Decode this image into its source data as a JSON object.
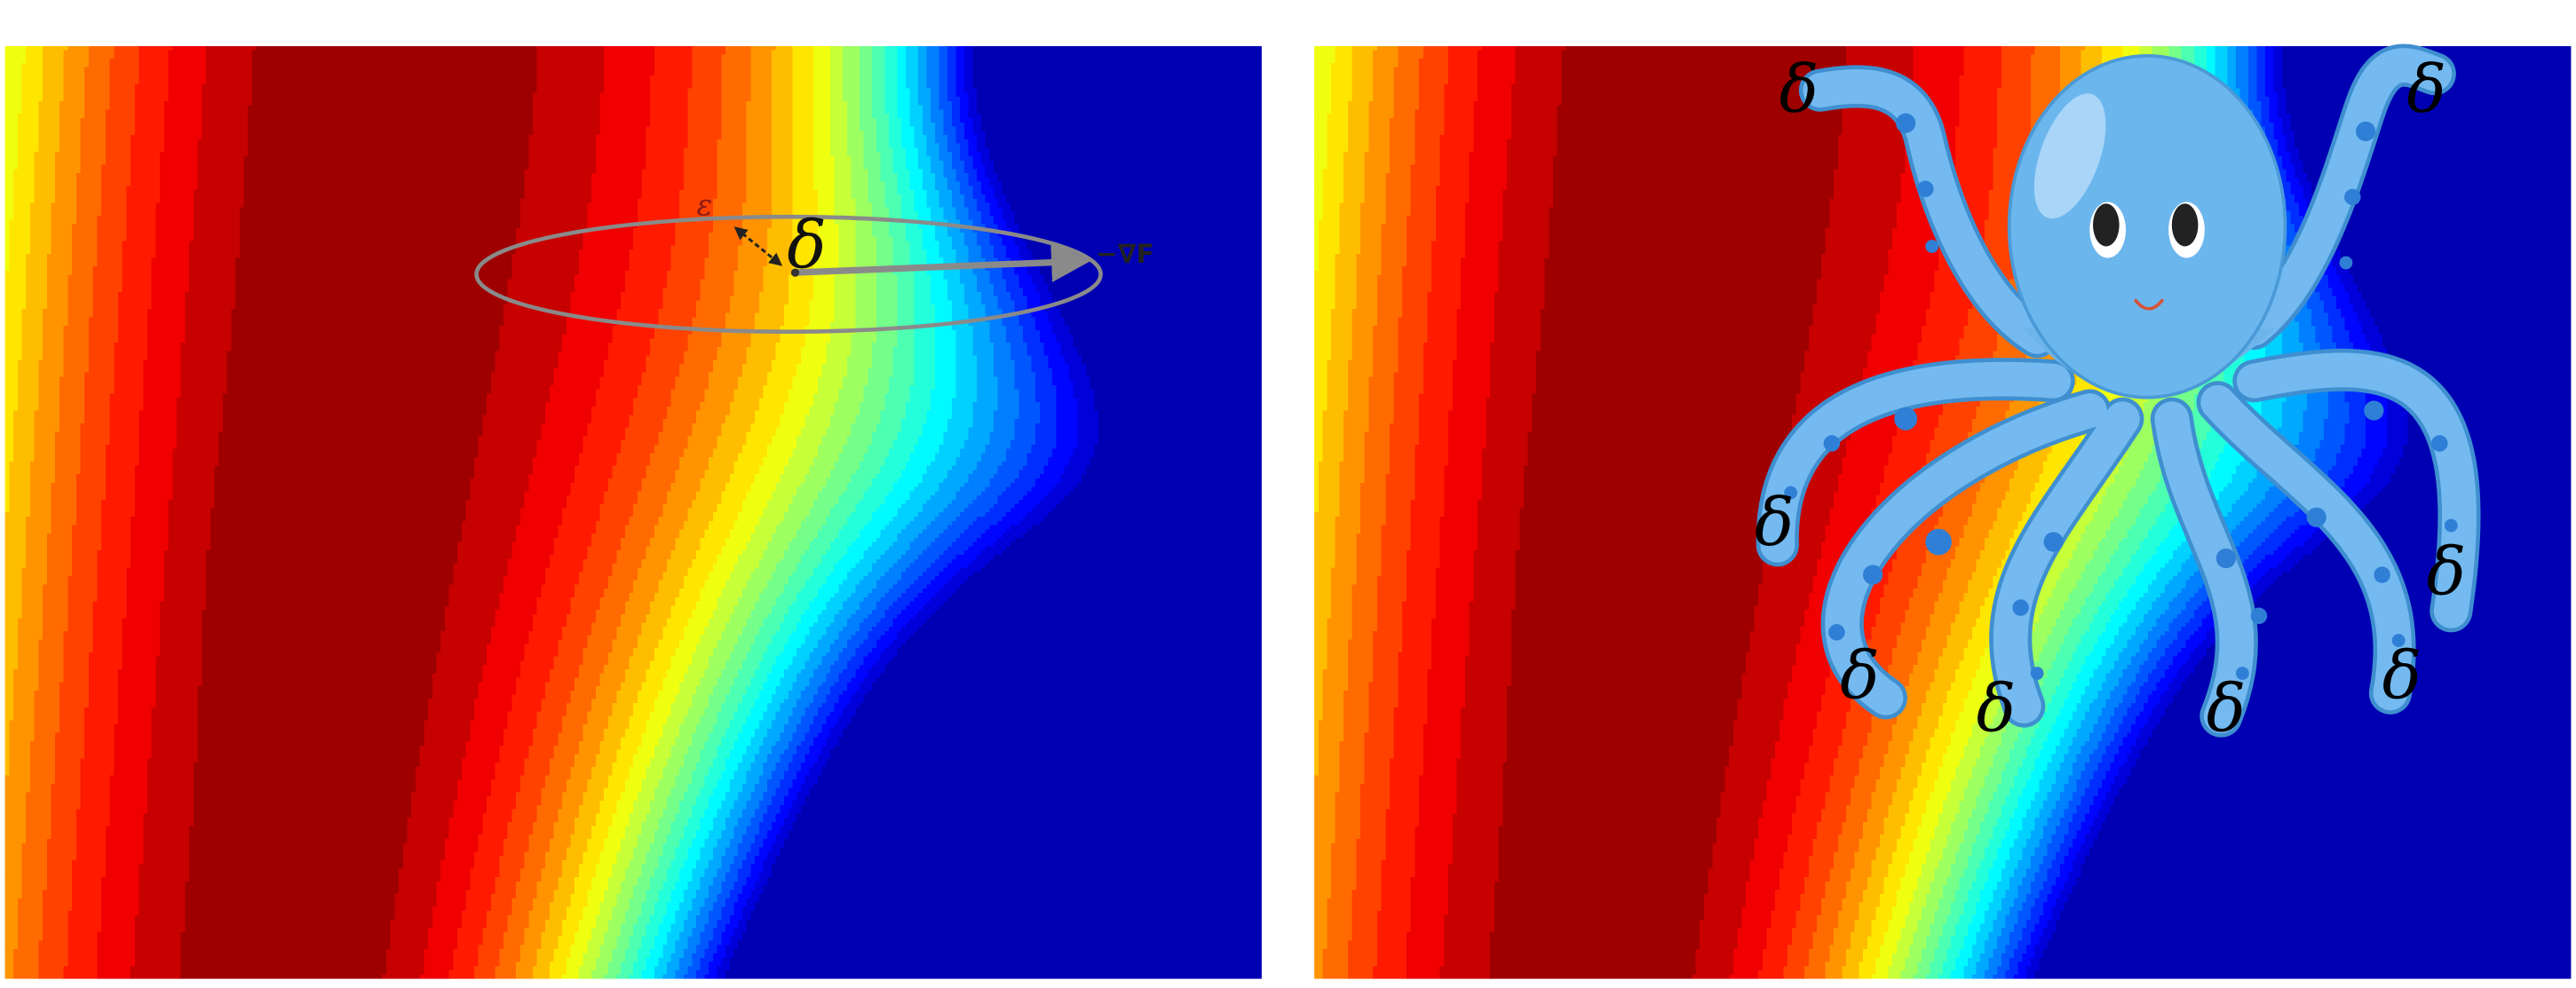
{
  "left": {
    "epsilon": "ε",
    "delta": "δ",
    "gradient": "−∇F"
  },
  "right": {
    "deltas": [
      "δ",
      "δ",
      "δ",
      "δ",
      "δ",
      "δ",
      "δ",
      "δ"
    ]
  }
}
